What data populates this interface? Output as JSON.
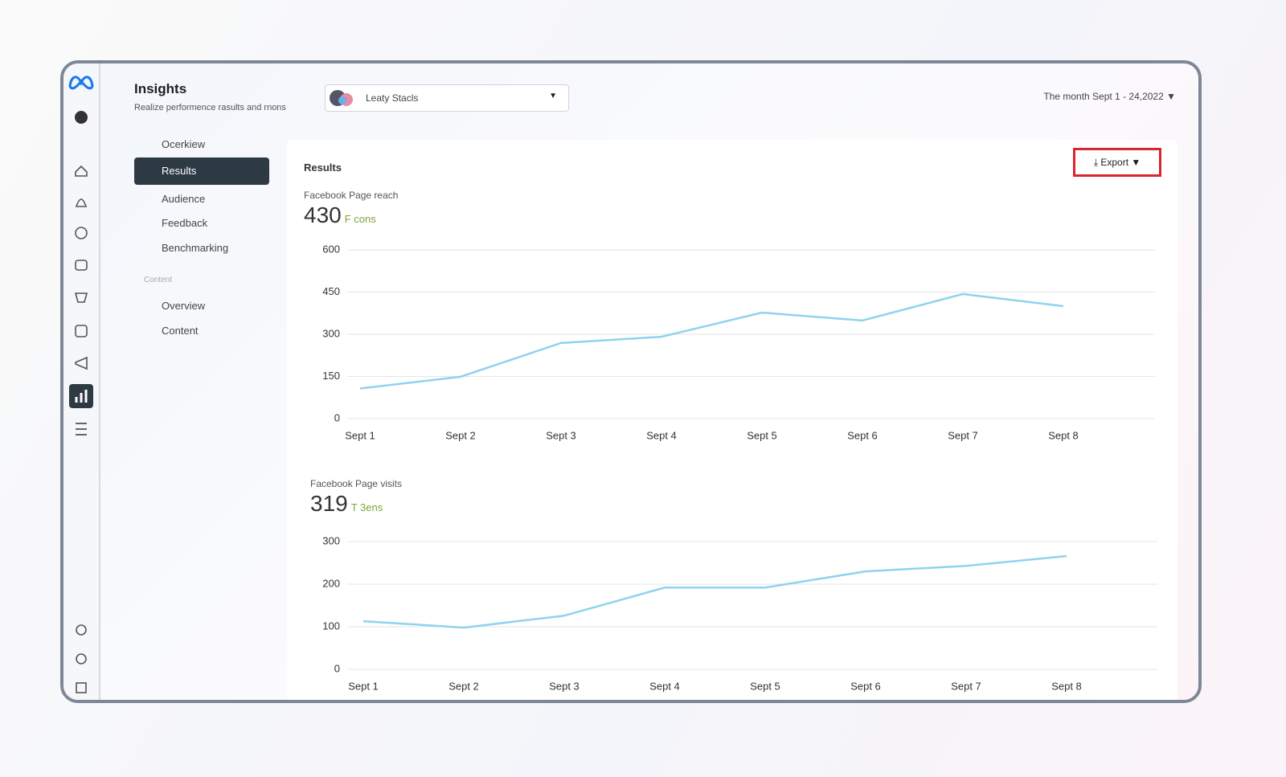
{
  "header": {
    "title": "Insights",
    "subtitle": "Realize performence rasults and rnons",
    "page_selector": "Leaty Stacls",
    "date_range": "The month Sept 1 - 24,2022"
  },
  "menu": {
    "items": [
      "Ocerkiew",
      "Results",
      "Audience",
      "Feedback",
      "Benchmarking"
    ],
    "section": "Content",
    "section_items": [
      "Overview",
      "Content"
    ]
  },
  "panel": {
    "title": "Results",
    "export": "Export",
    "metrics": [
      {
        "label": "Facebook Page reach",
        "total": 430,
        "change": "F cons"
      },
      {
        "label": "Facebook Page visits",
        "total": 319,
        "change": "T 3ens"
      }
    ]
  },
  "chart_data": [
    {
      "type": "line",
      "categories": [
        "Sept 1",
        "Sept 2",
        "Sept 3",
        "Sept 4",
        "Sept 5",
        "Sept 6",
        "Sept 7",
        "Sept 8"
      ],
      "values": [
        107,
        149,
        269,
        291,
        377,
        349,
        443,
        400
      ],
      "color": "#8fd3ee",
      "ylim": [
        0,
        600
      ],
      "yticks": [
        0,
        150,
        300,
        450,
        600
      ],
      "grid": true
    },
    {
      "type": "line",
      "categories": [
        "Sept 1",
        "Sept 2",
        "Sept 3",
        "Sept 4",
        "Sept 5",
        "Sept 6",
        "Sept 7",
        "Sept 8"
      ],
      "values": [
        113,
        98,
        126,
        192,
        192,
        230,
        243,
        266
      ],
      "color": "#8fd3ee",
      "ylim": [
        0,
        300
      ],
      "yticks": [
        0,
        100,
        200,
        300
      ],
      "grid": true
    }
  ]
}
